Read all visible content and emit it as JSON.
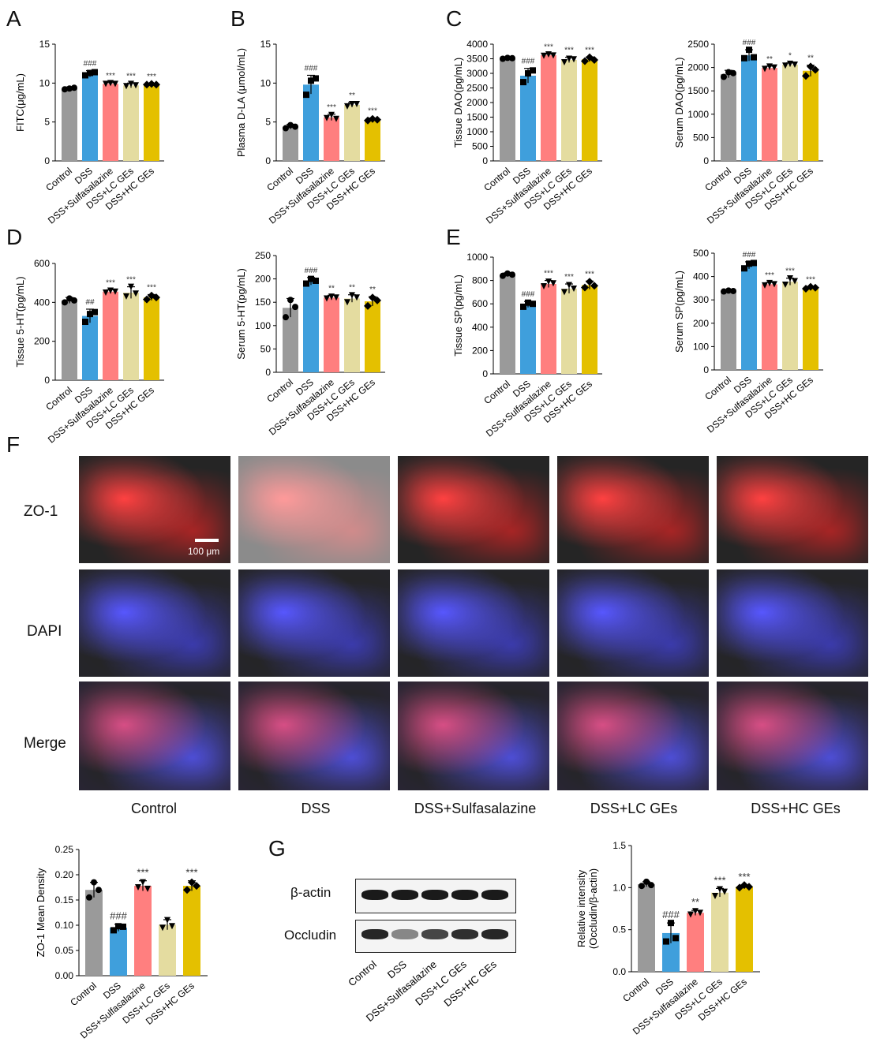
{
  "panel_labels": {
    "A": "A",
    "B": "B",
    "C": "C",
    "D": "D",
    "E": "E",
    "F": "F",
    "G": "G"
  },
  "group_colors": [
    "#9a9a9a",
    "#3f9fdc",
    "#ff7f7f",
    "#e4dca0",
    "#e4c000"
  ],
  "chart_data": [
    {
      "id": "a",
      "type": "bar",
      "ylabel": "FITC(μg/mL)",
      "ylim": [
        0,
        15
      ],
      "ticks": [
        0,
        5,
        10,
        15
      ],
      "categories": [
        "Control",
        "DSS",
        "DSS+Sulfasalazine",
        "DSS+LC GEs",
        "DSS+HC GEs"
      ],
      "values": [
        9.3,
        11.2,
        9.9,
        9.7,
        9.8
      ],
      "errors": [
        0.2,
        0.4,
        0.15,
        0.3,
        0.15
      ],
      "points": [
        [
          9.2,
          9.3,
          9.4
        ],
        [
          11,
          11.3,
          11.4
        ],
        [
          9.9,
          10,
          9.9
        ],
        [
          9.6,
          9.9,
          9.7
        ],
        [
          9.8,
          9.9,
          9.8
        ]
      ],
      "markers": [
        "circle",
        "square",
        "triangle",
        "triangle",
        "diamond"
      ],
      "annotations": [
        "",
        "###",
        "***",
        "***",
        "***"
      ]
    },
    {
      "id": "b",
      "type": "bar",
      "ylabel": "Plasma D-LA (μmol/mL)",
      "ylim": [
        0,
        15
      ],
      "ticks": [
        0,
        5,
        10,
        15
      ],
      "categories": [
        "Control",
        "DSS",
        "DSS+Sulfasalazine",
        "DSS+LC GEs",
        "DSS+HC GEs"
      ],
      "values": [
        4.4,
        9.8,
        5.6,
        7.2,
        5.3
      ],
      "errors": [
        0.3,
        1.2,
        0.4,
        0.3,
        0.2
      ],
      "points": [
        [
          4.2,
          4.6,
          4.4
        ],
        [
          8.5,
          10.3,
          10.6
        ],
        [
          5.5,
          5.9,
          5.4
        ],
        [
          7,
          7.3,
          7.3
        ],
        [
          5.2,
          5.4,
          5.3
        ]
      ],
      "markers": [
        "circle",
        "square",
        "triangle",
        "triangle",
        "diamond"
      ],
      "annotations": [
        "",
        "###",
        "***",
        "**",
        "***"
      ]
    },
    {
      "id": "c1",
      "type": "bar",
      "ylabel": "Tissue DAO(pg/mL)",
      "ylim": [
        0,
        4000
      ],
      "ticks": [
        0,
        500,
        1000,
        1500,
        2000,
        2500,
        3000,
        3500,
        4000
      ],
      "categories": [
        "Control",
        "DSS",
        "DSS+Sulfasalazine",
        "DSS+LC GEs",
        "DSS+HC GEs"
      ],
      "values": [
        3520,
        2920,
        3620,
        3460,
        3480
      ],
      "errors": [
        40,
        250,
        40,
        90,
        80
      ],
      "points": [
        [
          3500,
          3530,
          3520
        ],
        [
          2700,
          3000,
          3100
        ],
        [
          3600,
          3650,
          3610
        ],
        [
          3380,
          3500,
          3480
        ],
        [
          3420,
          3550,
          3460
        ]
      ],
      "markers": [
        "circle",
        "square",
        "triangle",
        "triangle",
        "diamond"
      ],
      "annotations": [
        "",
        "###",
        "***",
        "***",
        "***"
      ]
    },
    {
      "id": "c2",
      "type": "bar",
      "ylabel": "Serum DAO(pg/mL)",
      "ylim": [
        0,
        2500
      ],
      "ticks": [
        0,
        500,
        1000,
        1500,
        2000,
        2500
      ],
      "categories": [
        "Control",
        "DSS",
        "DSS+Sulfasalazine",
        "DSS+LC GEs",
        "DSS+HC GEs"
      ],
      "values": [
        1860,
        2260,
        1990,
        2060,
        1930
      ],
      "errors": [
        80,
        120,
        40,
        40,
        120
      ],
      "points": [
        [
          1800,
          1900,
          1880
        ],
        [
          2200,
          2380,
          2220
        ],
        [
          1970,
          2020,
          2000
        ],
        [
          2040,
          2080,
          2060
        ],
        [
          1820,
          2020,
          1950
        ]
      ],
      "markers": [
        "circle",
        "square",
        "triangle",
        "triangle",
        "diamond"
      ],
      "annotations": [
        "",
        "###",
        "**",
        "*",
        "**"
      ]
    },
    {
      "id": "d1",
      "type": "bar",
      "ylabel": "Tissue 5-HT(pg/mL)",
      "ylim": [
        0,
        600
      ],
      "ticks": [
        0,
        200,
        400,
        600
      ],
      "categories": [
        "Control",
        "DSS",
        "DSS+Sulfasalazine",
        "DSS+LC GEs",
        "DSS+HC GEs"
      ],
      "values": [
        410,
        330,
        455,
        450,
        425
      ],
      "errors": [
        15,
        35,
        10,
        30,
        15
      ],
      "points": [
        [
          400,
          420,
          410
        ],
        [
          300,
          340,
          350
        ],
        [
          450,
          460,
          455
        ],
        [
          430,
          480,
          445
        ],
        [
          415,
          435,
          425
        ]
      ],
      "markers": [
        "circle",
        "square",
        "triangle",
        "triangle",
        "diamond"
      ],
      "annotations": [
        "",
        "##",
        "***",
        "***",
        "***"
      ]
    },
    {
      "id": "d2",
      "type": "bar",
      "ylabel": "Serum 5-HT(pg/mL)",
      "ylim": [
        0,
        250
      ],
      "ticks": [
        0,
        50,
        100,
        150,
        200,
        250
      ],
      "categories": [
        "Control",
        "DSS",
        "DSS+Sulfasalazine",
        "DSS+LC GEs",
        "DSS+HC GEs"
      ],
      "values": [
        138,
        195,
        160,
        158,
        152
      ],
      "errors": [
        20,
        8,
        5,
        8,
        10
      ],
      "points": [
        [
          118,
          155,
          140
        ],
        [
          190,
          200,
          196
        ],
        [
          158,
          162,
          160
        ],
        [
          150,
          165,
          160
        ],
        [
          142,
          160,
          154
        ]
      ],
      "markers": [
        "circle",
        "square",
        "triangle",
        "triangle",
        "diamond"
      ],
      "annotations": [
        "",
        "###",
        "**",
        "**",
        "**"
      ]
    },
    {
      "id": "e1",
      "type": "bar",
      "ylabel": "Tissue SP(pg/mL)",
      "ylim": [
        0,
        1000
      ],
      "ticks": [
        0,
        200,
        400,
        600,
        800,
        1000
      ],
      "categories": [
        "Control",
        "DSS",
        "DSS+Sulfasalazine",
        "DSS+LC GEs",
        "DSS+HC GEs"
      ],
      "values": [
        850,
        595,
        770,
        730,
        760
      ],
      "errors": [
        15,
        25,
        30,
        40,
        35
      ],
      "points": [
        [
          840,
          860,
          850
        ],
        [
          575,
          610,
          600
        ],
        [
          750,
          790,
          775
        ],
        [
          700,
          760,
          730
        ],
        [
          740,
          790,
          755
        ]
      ],
      "markers": [
        "circle",
        "square",
        "triangle",
        "triangle",
        "diamond"
      ],
      "annotations": [
        "",
        "###",
        "***",
        "***",
        "***"
      ]
    },
    {
      "id": "e2",
      "type": "bar",
      "ylabel": "Serum SP(pg/mL)",
      "ylim": [
        0,
        500
      ],
      "ticks": [
        0,
        100,
        200,
        300,
        400,
        500
      ],
      "categories": [
        "Control",
        "DSS",
        "DSS+Sulfasalazine",
        "DSS+LC GEs",
        "DSS+HC GEs"
      ],
      "values": [
        338,
        448,
        367,
        378,
        352
      ],
      "errors": [
        3,
        15,
        8,
        15,
        5
      ],
      "points": [
        [
          336,
          340,
          338
        ],
        [
          435,
          455,
          458
        ],
        [
          362,
          372,
          367
        ],
        [
          365,
          392,
          380
        ],
        [
          348,
          356,
          352
        ]
      ],
      "markers": [
        "circle",
        "square",
        "triangle",
        "triangle",
        "diamond"
      ],
      "annotations": [
        "",
        "###",
        "***",
        "***",
        "***"
      ]
    },
    {
      "id": "zo1",
      "type": "bar",
      "ylabel": "ZO-1 Mean Density",
      "ylim": [
        0,
        0.25
      ],
      "ticks": [
        0.0,
        0.05,
        0.1,
        0.15,
        0.2,
        0.25
      ],
      "tickDecimals": 2,
      "categories": [
        "Control",
        "DSS",
        "DSS+Sulfasalazine",
        "DSS+LC GEs",
        "DSS+HC GEs"
      ],
      "values": [
        0.17,
        0.095,
        0.178,
        0.101,
        0.178
      ],
      "errors": [
        0.015,
        0.007,
        0.01,
        0.01,
        0.01
      ],
      "points": [
        [
          0.155,
          0.185,
          0.17
        ],
        [
          0.09,
          0.098,
          0.097
        ],
        [
          0.175,
          0.185,
          0.172
        ],
        [
          0.095,
          0.11,
          0.098
        ],
        [
          0.17,
          0.185,
          0.178
        ]
      ],
      "markers": [
        "circle",
        "square",
        "triangle",
        "triangle",
        "diamond"
      ],
      "annotations": [
        "",
        "###",
        "***",
        "",
        "***"
      ]
    },
    {
      "id": "occ",
      "type": "bar",
      "ylabel": "Relative intensity (Occludin/β-actin)",
      "ylabel_lines": [
        "Relative intensity",
        "(Occludin/β-actin)"
      ],
      "ylim": [
        0,
        1.5
      ],
      "ticks": [
        0.0,
        0.5,
        1.0,
        1.5
      ],
      "tickDecimals": 1,
      "categories": [
        "Control",
        "DSS",
        "DSS+Sulfasalazine",
        "DSS+LC GEs",
        "DSS+HC GEs"
      ],
      "values": [
        1.04,
        0.46,
        0.7,
        0.94,
        1.01
      ],
      "errors": [
        0.03,
        0.12,
        0.03,
        0.05,
        0.02
      ],
      "points": [
        [
          1.02,
          1.07,
          1.03
        ],
        [
          0.36,
          0.58,
          0.4
        ],
        [
          0.68,
          0.72,
          0.7
        ],
        [
          0.9,
          0.98,
          0.95
        ],
        [
          1.0,
          1.03,
          1.01
        ]
      ],
      "markers": [
        "circle",
        "square",
        "triangle",
        "triangle",
        "diamond"
      ],
      "annotations": [
        "",
        "###",
        "**",
        "***",
        "***"
      ]
    }
  ],
  "panel_f": {
    "rows": [
      "ZO-1",
      "DAPI",
      "Merge"
    ],
    "columns": [
      "Control",
      "DSS",
      "DSS+Sulfasalazine",
      "DSS+LC GEs",
      "DSS+HC GEs"
    ],
    "scale_bar": "100 μm"
  },
  "panel_g": {
    "bands": [
      "β-actin",
      "Occludin"
    ],
    "lanes": [
      "Control",
      "DSS",
      "DSS+Sulfasalazine",
      "DSS+LC GEs",
      "DSS+HC GEs"
    ]
  }
}
